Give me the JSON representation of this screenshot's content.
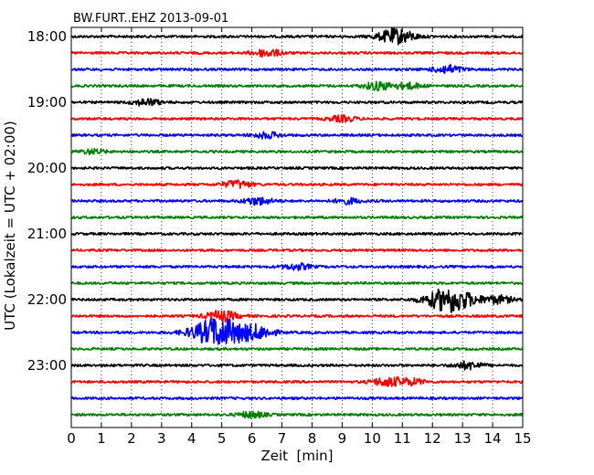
{
  "chart_data": {
    "type": "line",
    "title": "BW.FURT..EHZ 2013-09-01",
    "xlabel": "Zeit  [min]",
    "ylabel": "UTC (Lokalzeit = UTC + 02:00)",
    "xlim": [
      0,
      15
    ],
    "x_ticks": [
      "0",
      "1",
      "2",
      "3",
      "4",
      "5",
      "6",
      "7",
      "8",
      "9",
      "10",
      "11",
      "12",
      "13",
      "14",
      "15"
    ],
    "y_tick_labels": [
      "18:00",
      "19:00",
      "20:00",
      "21:00",
      "22:00",
      "23:00"
    ],
    "grid": "vertical dotted lines at each minute",
    "trace_interval_minutes": 15,
    "color_cycle": [
      "#000000",
      "#ff0000",
      "#0000ff",
      "#008000"
    ],
    "traces": [
      {
        "start": "18:00",
        "color": "#000000",
        "events": [
          [
            10.8,
            1.0
          ]
        ]
      },
      {
        "start": "18:15",
        "color": "#ff0000",
        "events": [
          [
            6.5,
            0.5
          ]
        ]
      },
      {
        "start": "18:30",
        "color": "#0000ff",
        "events": [
          [
            12.5,
            0.55
          ]
        ]
      },
      {
        "start": "18:45",
        "color": "#008000",
        "events": [
          [
            10.2,
            0.55
          ],
          [
            11.2,
            0.4
          ]
        ]
      },
      {
        "start": "19:00",
        "color": "#000000",
        "events": [
          [
            2.5,
            0.45
          ]
        ]
      },
      {
        "start": "19:15",
        "color": "#ff0000",
        "events": [
          [
            9.0,
            0.4
          ]
        ]
      },
      {
        "start": "19:30",
        "color": "#0000ff",
        "events": [
          [
            6.5,
            0.4
          ]
        ]
      },
      {
        "start": "19:45",
        "color": "#008000",
        "events": [
          [
            0.7,
            0.3
          ]
        ]
      },
      {
        "start": "20:00",
        "color": "#000000",
        "events": []
      },
      {
        "start": "20:15",
        "color": "#ff0000",
        "events": [
          [
            5.5,
            0.5
          ]
        ]
      },
      {
        "start": "20:30",
        "color": "#0000ff",
        "events": [
          [
            6.2,
            0.5
          ],
          [
            9.2,
            0.35
          ]
        ]
      },
      {
        "start": "20:45",
        "color": "#008000",
        "events": []
      },
      {
        "start": "21:00",
        "color": "#000000",
        "events": []
      },
      {
        "start": "21:15",
        "color": "#ff0000",
        "events": []
      },
      {
        "start": "21:30",
        "color": "#0000ff",
        "events": [
          [
            7.5,
            0.4
          ]
        ]
      },
      {
        "start": "21:45",
        "color": "#008000",
        "events": []
      },
      {
        "start": "22:00",
        "color": "#000000",
        "events": [
          [
            12.6,
            1.7
          ],
          [
            14.2,
            0.5
          ]
        ]
      },
      {
        "start": "22:15",
        "color": "#ff0000",
        "events": [
          [
            5.0,
            0.7
          ]
        ]
      },
      {
        "start": "22:30",
        "color": "#0000ff",
        "events": [
          [
            4.9,
            2.0
          ],
          [
            6.2,
            0.8
          ]
        ]
      },
      {
        "start": "22:45",
        "color": "#008000",
        "events": []
      },
      {
        "start": "23:00",
        "color": "#000000",
        "events": [
          [
            13.2,
            0.5
          ]
        ]
      },
      {
        "start": "23:15",
        "color": "#ff0000",
        "events": [
          [
            10.5,
            0.6
          ],
          [
            11.3,
            0.4
          ]
        ]
      },
      {
        "start": "23:30",
        "color": "#0000ff",
        "events": []
      },
      {
        "start": "23:45",
        "color": "#008000",
        "events": [
          [
            6.0,
            0.4
          ]
        ]
      }
    ]
  }
}
